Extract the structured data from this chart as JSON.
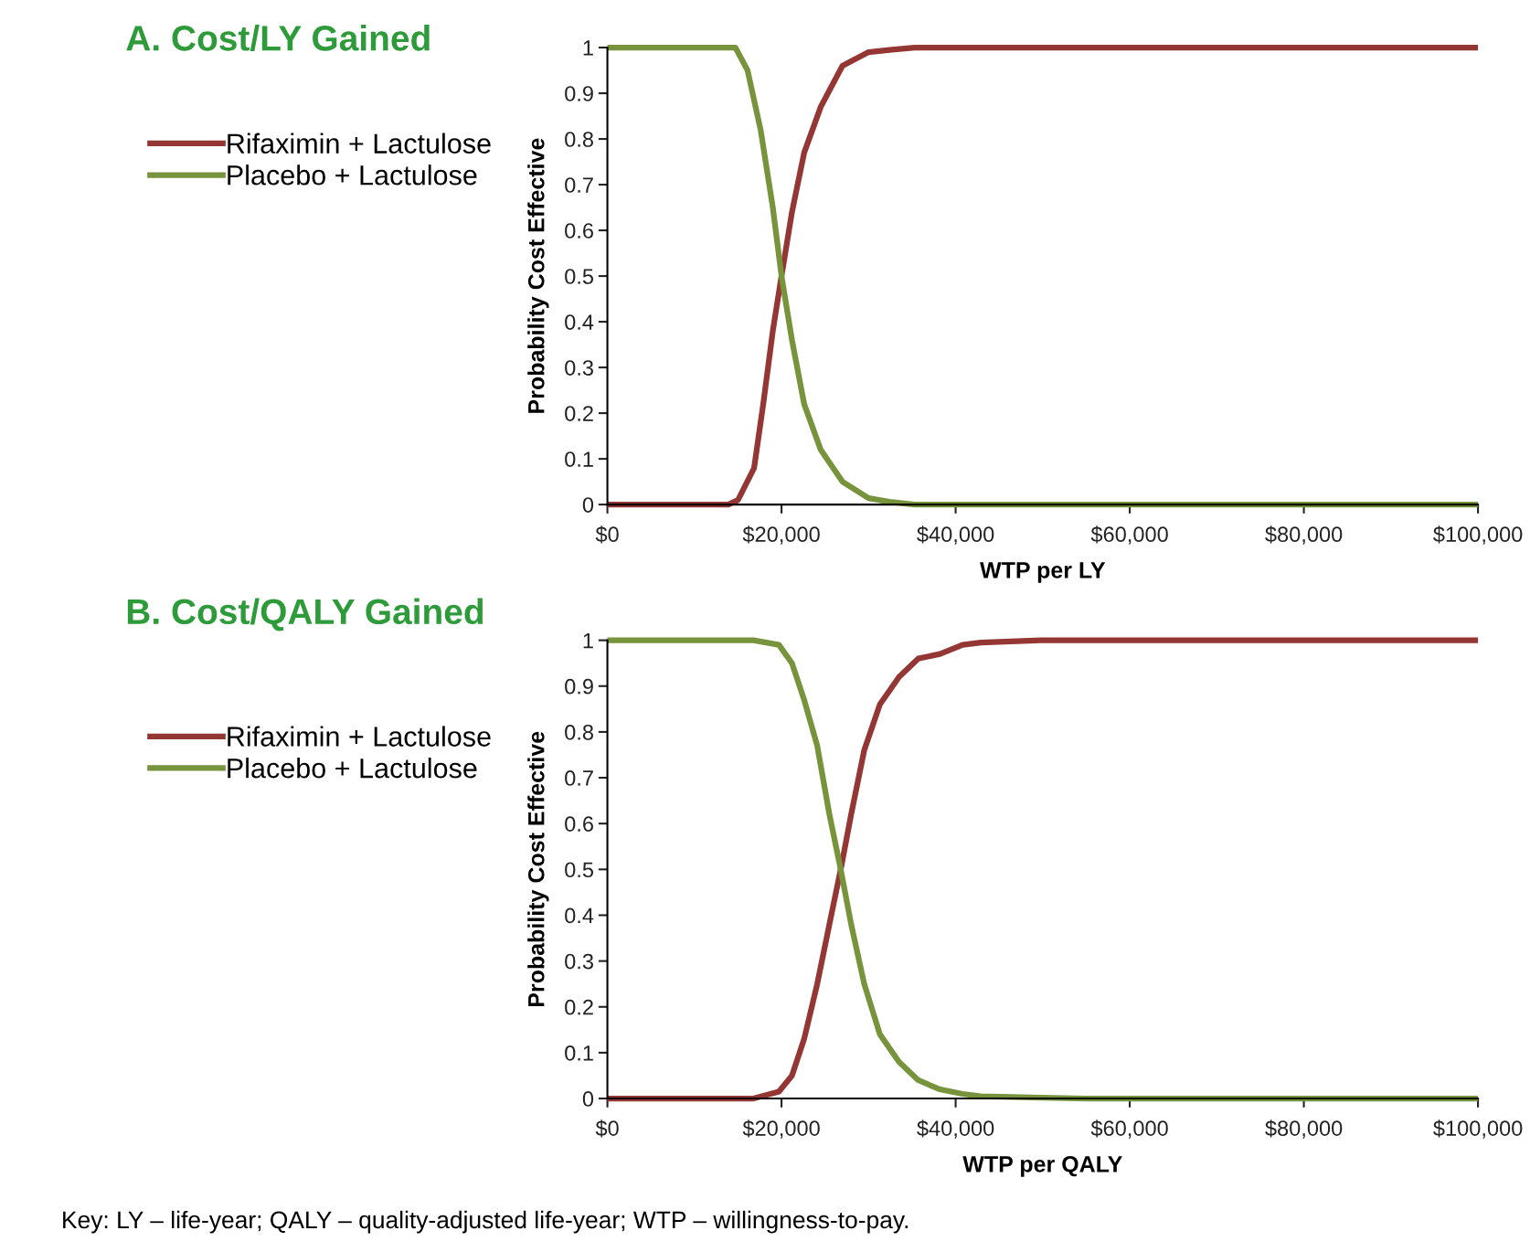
{
  "chart_data": [
    {
      "type": "line",
      "title": "A. Cost/LY Gained",
      "xlabel": "WTP per LY",
      "ylabel": "Probability Cost Effective",
      "legend": "left",
      "grid": false,
      "marker": "none",
      "line_style": "solid",
      "xlim": [
        0,
        100000
      ],
      "ylim": [
        0,
        1
      ],
      "xticks": [
        {
          "value": 0,
          "label": "$0"
        },
        {
          "value": 20000,
          "label": "$20,000"
        },
        {
          "value": 40000,
          "label": "$40,000"
        },
        {
          "value": 60000,
          "label": "$60,000"
        },
        {
          "value": 80000,
          "label": "$80,000"
        },
        {
          "value": 100000,
          "label": "$100,000"
        }
      ],
      "yticks": [
        0,
        0.1,
        0.2,
        0.3,
        0.4,
        0.5,
        0.6,
        0.7,
        0.8,
        0.9,
        1
      ],
      "series": [
        {
          "name": "Rifaximin + Lactulose",
          "color": "#943634",
          "x": [
            0,
            13900,
            15000,
            16850,
            17900,
            19000,
            20000,
            21200,
            22600,
            24500,
            27000,
            30000,
            32400,
            35300,
            100000
          ],
          "values": [
            0,
            0,
            0.01,
            0.08,
            0.22,
            0.38,
            0.5,
            0.64,
            0.77,
            0.87,
            0.96,
            0.99,
            0.995,
            1,
            1
          ]
        },
        {
          "name": "Placebo + Lactulose",
          "color": "#77933c",
          "x": [
            0,
            14700,
            16100,
            17600,
            19000,
            20000,
            21200,
            22600,
            24500,
            27000,
            30000,
            32400,
            35300,
            100000
          ],
          "values": [
            1,
            1,
            0.95,
            0.82,
            0.65,
            0.5,
            0.36,
            0.22,
            0.12,
            0.05,
            0.014,
            0.006,
            0,
            0
          ]
        }
      ]
    },
    {
      "type": "line",
      "title": "B. Cost/QALY Gained",
      "xlabel": "WTP per QALY",
      "ylabel": "Probability Cost Effective",
      "legend": "left",
      "grid": false,
      "marker": "none",
      "line_style": "solid",
      "xlim": [
        0,
        100000
      ],
      "ylim": [
        0,
        1
      ],
      "xticks": [
        {
          "value": 0,
          "label": "$0"
        },
        {
          "value": 20000,
          "label": "$20,000"
        },
        {
          "value": 40000,
          "label": "$40,000"
        },
        {
          "value": 60000,
          "label": "$60,000"
        },
        {
          "value": 80000,
          "label": "$80,000"
        },
        {
          "value": 100000,
          "label": "$100,000"
        }
      ],
      "yticks": [
        0,
        0.1,
        0.2,
        0.3,
        0.4,
        0.5,
        0.6,
        0.7,
        0.8,
        0.9,
        1
      ],
      "annotations": [
        "Key: LY – life-year; QALY – quality-adjusted life-year; WTP – willingness-to-pay."
      ],
      "series": [
        {
          "name": "Rifaximin + Lactulose",
          "color": "#943634",
          "x": [
            0,
            16800,
            19700,
            21200,
            22600,
            24100,
            25500,
            26800,
            28000,
            29500,
            31300,
            33500,
            35700,
            38200,
            40800,
            42900,
            49800,
            100000
          ],
          "values": [
            0,
            0,
            0.015,
            0.05,
            0.13,
            0.25,
            0.38,
            0.5,
            0.62,
            0.76,
            0.86,
            0.92,
            0.96,
            0.97,
            0.99,
            0.995,
            1,
            1
          ]
        },
        {
          "name": "Placebo + Lactulose",
          "color": "#77933c",
          "x": [
            0,
            16800,
            19700,
            21200,
            22600,
            24100,
            25500,
            26800,
            28000,
            29500,
            31300,
            33500,
            35700,
            38200,
            40800,
            42900,
            49800,
            55000,
            100000
          ],
          "values": [
            1,
            1,
            0.99,
            0.95,
            0.87,
            0.77,
            0.62,
            0.5,
            0.38,
            0.25,
            0.14,
            0.08,
            0.04,
            0.02,
            0.01,
            0.005,
            0.002,
            0,
            0
          ]
        }
      ]
    }
  ]
}
